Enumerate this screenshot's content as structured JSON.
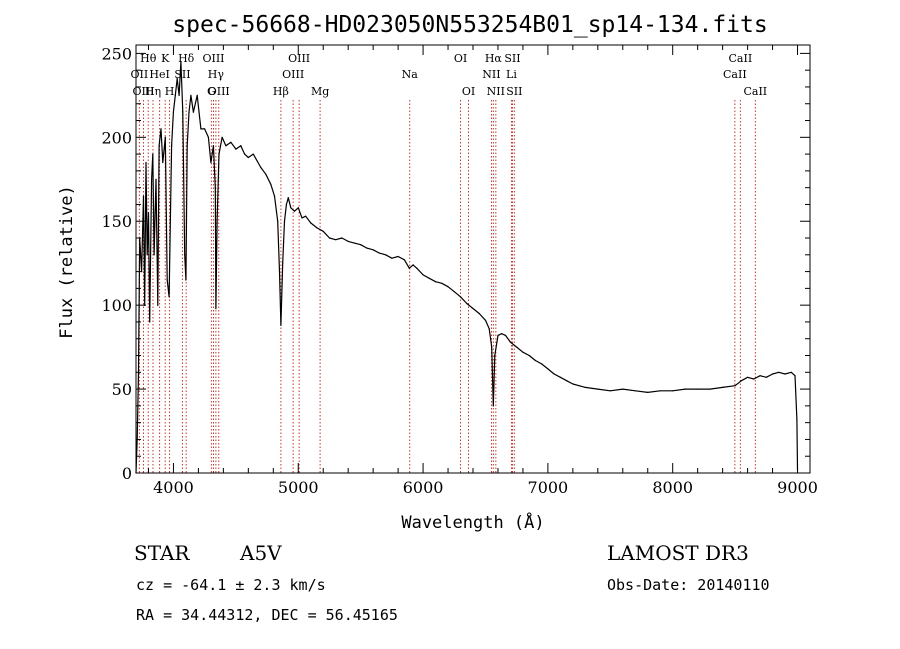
{
  "info": {
    "object_class": "STAR",
    "subclass": "A5V",
    "survey": "LAMOST DR3",
    "redshift_text": "cz = -64.1 ± 2.3 km/s",
    "obs_date_text": "Obs-Date: 20140110",
    "coords_text": "RA =  34.44312, DEC =  56.45165"
  },
  "chart_data": {
    "type": "line",
    "title": "spec-56668-HD023050N553254B01_sp14-134.fits",
    "xlabel": "Wavelength (Å)",
    "ylabel": "Flux (relative)",
    "xlim": [
      3700,
      9100
    ],
    "ylim": [
      0,
      255
    ],
    "x_ticks": [
      4000,
      5000,
      6000,
      7000,
      8000,
      9000
    ],
    "y_ticks": [
      0,
      50,
      100,
      150,
      200,
      250
    ],
    "grid": false,
    "series": [
      {
        "color": "#000000",
        "points": [
          [
            3700,
            0
          ],
          [
            3710,
            20
          ],
          [
            3720,
            60
          ],
          [
            3730,
            140
          ],
          [
            3745,
            120
          ],
          [
            3760,
            165
          ],
          [
            3770,
            100
          ],
          [
            3780,
            185
          ],
          [
            3790,
            130
          ],
          [
            3800,
            155
          ],
          [
            3810,
            90
          ],
          [
            3825,
            175
          ],
          [
            3835,
            190
          ],
          [
            3845,
            130
          ],
          [
            3860,
            175
          ],
          [
            3875,
            100
          ],
          [
            3885,
            195
          ],
          [
            3900,
            205
          ],
          [
            3915,
            185
          ],
          [
            3935,
            200
          ],
          [
            3950,
            115
          ],
          [
            3965,
            105
          ],
          [
            3985,
            195
          ],
          [
            4000,
            215
          ],
          [
            4015,
            225
          ],
          [
            4030,
            235
          ],
          [
            4045,
            225
          ],
          [
            4060,
            245
          ],
          [
            4075,
            215
          ],
          [
            4090,
            130
          ],
          [
            4100,
            115
          ],
          [
            4110,
            195
          ],
          [
            4125,
            215
          ],
          [
            4140,
            225
          ],
          [
            4160,
            215
          ],
          [
            4190,
            225
          ],
          [
            4220,
            205
          ],
          [
            4250,
            205
          ],
          [
            4280,
            200
          ],
          [
            4300,
            185
          ],
          [
            4320,
            195
          ],
          [
            4335,
            170
          ],
          [
            4340,
            98
          ],
          [
            4350,
            150
          ],
          [
            4365,
            190
          ],
          [
            4390,
            200
          ],
          [
            4420,
            195
          ],
          [
            4460,
            197
          ],
          [
            4500,
            193
          ],
          [
            4540,
            195
          ],
          [
            4570,
            190
          ],
          [
            4600,
            188
          ],
          [
            4640,
            190
          ],
          [
            4700,
            182
          ],
          [
            4740,
            178
          ],
          [
            4780,
            172
          ],
          [
            4810,
            165
          ],
          [
            4835,
            150
          ],
          [
            4850,
            120
          ],
          [
            4861,
            88
          ],
          [
            4875,
            125
          ],
          [
            4890,
            150
          ],
          [
            4905,
            160
          ],
          [
            4920,
            164
          ],
          [
            4940,
            158
          ],
          [
            4970,
            156
          ],
          [
            5000,
            158
          ],
          [
            5030,
            152
          ],
          [
            5060,
            153
          ],
          [
            5100,
            149
          ],
          [
            5150,
            146
          ],
          [
            5200,
            144
          ],
          [
            5250,
            140
          ],
          [
            5300,
            139
          ],
          [
            5350,
            140
          ],
          [
            5400,
            138
          ],
          [
            5450,
            137
          ],
          [
            5500,
            136
          ],
          [
            5550,
            134
          ],
          [
            5600,
            133
          ],
          [
            5650,
            131
          ],
          [
            5700,
            130
          ],
          [
            5750,
            128
          ],
          [
            5800,
            129
          ],
          [
            5850,
            127
          ],
          [
            5890,
            122
          ],
          [
            5920,
            124
          ],
          [
            5950,
            122
          ],
          [
            6000,
            118
          ],
          [
            6050,
            116
          ],
          [
            6100,
            114
          ],
          [
            6150,
            113
          ],
          [
            6200,
            111
          ],
          [
            6250,
            108
          ],
          [
            6300,
            105
          ],
          [
            6350,
            101
          ],
          [
            6400,
            98
          ],
          [
            6450,
            95
          ],
          [
            6500,
            91
          ],
          [
            6530,
            86
          ],
          [
            6550,
            75
          ],
          [
            6563,
            40
          ],
          [
            6575,
            70
          ],
          [
            6600,
            82
          ],
          [
            6630,
            83
          ],
          [
            6660,
            82
          ],
          [
            6700,
            78
          ],
          [
            6750,
            75
          ],
          [
            6800,
            72
          ],
          [
            6850,
            70
          ],
          [
            6900,
            67
          ],
          [
            6950,
            65
          ],
          [
            7000,
            62
          ],
          [
            7050,
            59
          ],
          [
            7100,
            57
          ],
          [
            7150,
            55
          ],
          [
            7200,
            53
          ],
          [
            7250,
            52
          ],
          [
            7300,
            51
          ],
          [
            7400,
            50
          ],
          [
            7500,
            49
          ],
          [
            7600,
            50
          ],
          [
            7700,
            49
          ],
          [
            7800,
            48
          ],
          [
            7900,
            49
          ],
          [
            8000,
            49
          ],
          [
            8100,
            50
          ],
          [
            8200,
            50
          ],
          [
            8300,
            50
          ],
          [
            8400,
            51
          ],
          [
            8500,
            52
          ],
          [
            8550,
            55
          ],
          [
            8600,
            57
          ],
          [
            8650,
            56
          ],
          [
            8700,
            58
          ],
          [
            8750,
            57
          ],
          [
            8800,
            59
          ],
          [
            8850,
            60
          ],
          [
            8900,
            59
          ],
          [
            8950,
            60
          ],
          [
            8980,
            58
          ],
          [
            8995,
            32
          ],
          [
            9000,
            2
          ]
        ]
      }
    ],
    "lines": [
      {
        "label": "Hθ",
        "wave": 3798,
        "row": 0
      },
      {
        "label": "OII",
        "wave": 3727,
        "row": 1
      },
      {
        "label": "OIII",
        "wave": 3760,
        "row": 2
      },
      {
        "label": "Hη",
        "wave": 3836,
        "row": 2
      },
      {
        "label": "HeI",
        "wave": 3889,
        "row": 1
      },
      {
        "label": "K",
        "wave": 3934,
        "row": 0
      },
      {
        "label": "H",
        "wave": 3969,
        "row": 2
      },
      {
        "label": "SII",
        "wave": 4072,
        "row": 1
      },
      {
        "label": "Hδ",
        "wave": 4102,
        "row": 0
      },
      {
        "label": "G",
        "wave": 4304,
        "row": 2
      },
      {
        "label": "OIII",
        "wave": 4321,
        "row": 0
      },
      {
        "label": "Hγ",
        "wave": 4340,
        "row": 1
      },
      {
        "label": "OIII",
        "wave": 4363,
        "row": 2
      },
      {
        "label": "Hβ",
        "wave": 4861,
        "row": 2
      },
      {
        "label": "OIII",
        "wave": 4959,
        "row": 1
      },
      {
        "label": "OIII",
        "wave": 5007,
        "row": 0
      },
      {
        "label": "Mg",
        "wave": 5175,
        "row": 2
      },
      {
        "label": "Na",
        "wave": 5893,
        "row": 1
      },
      {
        "label": "OI",
        "wave": 6300,
        "row": 0
      },
      {
        "label": "OI",
        "wave": 6364,
        "row": 2
      },
      {
        "label": "NII",
        "wave": 6548,
        "row": 1
      },
      {
        "label": "Hα",
        "wave": 6563,
        "row": 0
      },
      {
        "label": "NII",
        "wave": 6583,
        "row": 2
      },
      {
        "label": "Li",
        "wave": 6708,
        "row": 1
      },
      {
        "label": "SII",
        "wave": 6716,
        "row": 0
      },
      {
        "label": "SII",
        "wave": 6731,
        "row": 2
      },
      {
        "label": "CaII",
        "wave": 8498,
        "row": 1
      },
      {
        "label": "CaII",
        "wave": 8542,
        "row": 0
      },
      {
        "label": "CaII",
        "wave": 8662,
        "row": 2
      }
    ],
    "line_color": "#c0392b"
  }
}
